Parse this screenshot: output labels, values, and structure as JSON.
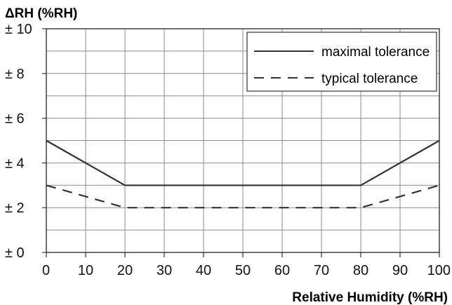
{
  "chart_data": {
    "type": "line",
    "ylabel": "ΔRH (%RH)",
    "xlabel": "Relative Humidity (%RH)",
    "xlim": [
      0,
      100
    ],
    "ylim": [
      0,
      10
    ],
    "x_ticks": [
      0,
      10,
      20,
      30,
      40,
      50,
      60,
      70,
      80,
      90,
      100
    ],
    "x_tick_labels": [
      "0",
      "10",
      "20",
      "30",
      "40",
      "50",
      "60",
      "70",
      "80",
      "90",
      "100"
    ],
    "y_ticks": [
      0,
      2,
      4,
      6,
      8,
      10
    ],
    "y_tick_labels": [
      "± 0",
      "± 2",
      "± 4",
      "± 6",
      "± 8",
      "± 10"
    ],
    "grid": true,
    "legend_position": "top-right",
    "series": [
      {
        "name": "maximal tolerance",
        "style": "solid",
        "color": "#333333",
        "x": [
          0,
          20,
          80,
          100
        ],
        "y": [
          5,
          3,
          3,
          5
        ]
      },
      {
        "name": "typical tolerance",
        "style": "dashed",
        "color": "#333333",
        "x": [
          0,
          20,
          80,
          100
        ],
        "y": [
          3,
          2,
          2,
          3
        ]
      }
    ]
  }
}
